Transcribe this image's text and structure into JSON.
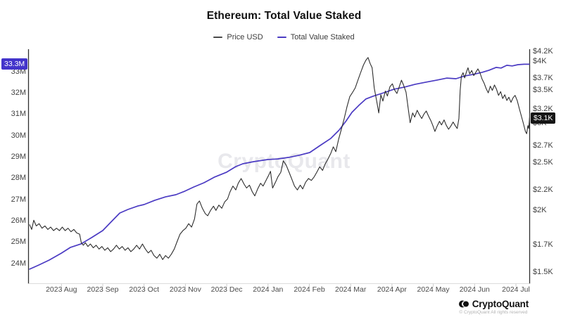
{
  "header": {
    "title": "Ethereum: Total Value Staked"
  },
  "legend": [
    {
      "label": "Price USD",
      "color": "#4a4a4a"
    },
    {
      "label": "Total Value Staked",
      "color": "#4b3bc3"
    }
  ],
  "watermark": "CryptoQuant",
  "footer": {
    "brand": "CryptoQuant",
    "copyright": "© CryptoQuant All rights reserved"
  },
  "badges": {
    "staked": {
      "text": "33.3M",
      "bg": "#4334cb"
    },
    "price": {
      "text": "$3.1K",
      "bg": "#161616"
    }
  },
  "chart_data": {
    "type": "line",
    "title": "Ethereum: Total Value Staked",
    "x_axis": {
      "unit": "months from 2023-08",
      "categories": [
        "2023 Aug",
        "2023 Sep",
        "2023 Oct",
        "2023 Nov",
        "2023 Dec",
        "2024 Jan",
        "2024 Feb",
        "2024 Mar",
        "2024 Apr",
        "2024 May",
        "2024 Jun",
        "2024 Jul"
      ]
    },
    "left_axis": {
      "name": "Total Value Staked",
      "unit": "M",
      "scale": "linear",
      "min": 24,
      "max": 33.5,
      "ticks": [
        33,
        32,
        31,
        30,
        29,
        28,
        27,
        26,
        25,
        24
      ]
    },
    "right_axis": {
      "name": "Price USD",
      "unit": "$K",
      "scale": "log",
      "min": 1.5,
      "max": 4.2,
      "ticks": [
        4.2,
        4,
        3.7,
        3.5,
        3.2,
        3,
        2.7,
        2.5,
        2.2,
        2,
        1.7,
        1.5
      ]
    },
    "grid": false,
    "legend_position": "top",
    "series": [
      {
        "name": "Total Value Staked",
        "axis": "left",
        "color": "#4b3bc3",
        "unit": "M ETH",
        "last_label": "33.3M",
        "points": [
          [
            -0.77,
            23.74
          ],
          [
            -0.55,
            23.93
          ],
          [
            -0.3,
            24.16
          ],
          [
            0,
            24.49
          ],
          [
            0.22,
            24.76
          ],
          [
            0.47,
            24.92
          ],
          [
            0.73,
            25.22
          ],
          [
            1,
            25.55
          ],
          [
            1.2,
            25.95
          ],
          [
            1.41,
            26.37
          ],
          [
            1.61,
            26.54
          ],
          [
            1.85,
            26.7
          ],
          [
            2,
            26.77
          ],
          [
            2.26,
            26.97
          ],
          [
            2.52,
            27.13
          ],
          [
            2.77,
            27.23
          ],
          [
            2.99,
            27.4
          ],
          [
            3.2,
            27.59
          ],
          [
            3.45,
            27.79
          ],
          [
            3.71,
            28.06
          ],
          [
            4,
            28.29
          ],
          [
            4.22,
            28.55
          ],
          [
            4.39,
            28.68
          ],
          [
            4.65,
            28.78
          ],
          [
            4.99,
            28.88
          ],
          [
            5.24,
            28.91
          ],
          [
            5.5,
            28.98
          ],
          [
            5.75,
            29.08
          ],
          [
            6.01,
            29.21
          ],
          [
            6.26,
            29.54
          ],
          [
            6.52,
            29.87
          ],
          [
            6.72,
            30.26
          ],
          [
            6.89,
            30.69
          ],
          [
            7.03,
            31.09
          ],
          [
            7.2,
            31.42
          ],
          [
            7.37,
            31.72
          ],
          [
            7.54,
            31.85
          ],
          [
            7.8,
            32.01
          ],
          [
            8.05,
            32.18
          ],
          [
            8.31,
            32.28
          ],
          [
            8.56,
            32.41
          ],
          [
            8.82,
            32.51
          ],
          [
            9.08,
            32.6
          ],
          [
            9.33,
            32.7
          ],
          [
            9.55,
            32.67
          ],
          [
            9.76,
            32.8
          ],
          [
            9.96,
            32.87
          ],
          [
            10.18,
            32.97
          ],
          [
            10.35,
            33.07
          ],
          [
            10.52,
            33.2
          ],
          [
            10.64,
            33.17
          ],
          [
            10.78,
            33.3
          ],
          [
            10.91,
            33.27
          ],
          [
            11.05,
            33.33
          ],
          [
            11.2,
            33.35
          ],
          [
            11.32,
            33.35
          ]
        ]
      },
      {
        "name": "Price USD",
        "axis": "right",
        "color": "#2d2d2d",
        "unit": "K USD",
        "last_label": "$3.1K",
        "points": [
          [
            -0.77,
            1.87
          ],
          [
            -0.72,
            1.83
          ],
          [
            -0.67,
            1.91
          ],
          [
            -0.61,
            1.86
          ],
          [
            -0.54,
            1.88
          ],
          [
            -0.47,
            1.84
          ],
          [
            -0.4,
            1.86
          ],
          [
            -0.33,
            1.83
          ],
          [
            -0.26,
            1.85
          ],
          [
            -0.19,
            1.82
          ],
          [
            -0.12,
            1.84
          ],
          [
            -0.05,
            1.82
          ],
          [
            0.02,
            1.85
          ],
          [
            0.09,
            1.82
          ],
          [
            0.16,
            1.84
          ],
          [
            0.23,
            1.81
          ],
          [
            0.3,
            1.83
          ],
          [
            0.37,
            1.8
          ],
          [
            0.44,
            1.79
          ],
          [
            0.48,
            1.72
          ],
          [
            0.53,
            1.7
          ],
          [
            0.58,
            1.72
          ],
          [
            0.64,
            1.69
          ],
          [
            0.7,
            1.71
          ],
          [
            0.77,
            1.68
          ],
          [
            0.84,
            1.7
          ],
          [
            0.91,
            1.67
          ],
          [
            0.98,
            1.69
          ],
          [
            1.05,
            1.66
          ],
          [
            1.12,
            1.68
          ],
          [
            1.19,
            1.65
          ],
          [
            1.26,
            1.67
          ],
          [
            1.33,
            1.7
          ],
          [
            1.4,
            1.67
          ],
          [
            1.47,
            1.69
          ],
          [
            1.54,
            1.66
          ],
          [
            1.61,
            1.68
          ],
          [
            1.68,
            1.65
          ],
          [
            1.75,
            1.67
          ],
          [
            1.82,
            1.7
          ],
          [
            1.89,
            1.67
          ],
          [
            1.96,
            1.71
          ],
          [
            2.03,
            1.67
          ],
          [
            2.1,
            1.64
          ],
          [
            2.17,
            1.66
          ],
          [
            2.24,
            1.62
          ],
          [
            2.31,
            1.6
          ],
          [
            2.38,
            1.63
          ],
          [
            2.45,
            1.59
          ],
          [
            2.52,
            1.62
          ],
          [
            2.59,
            1.6
          ],
          [
            2.66,
            1.63
          ],
          [
            2.73,
            1.67
          ],
          [
            2.8,
            1.73
          ],
          [
            2.87,
            1.79
          ],
          [
            2.94,
            1.82
          ],
          [
            3.01,
            1.84
          ],
          [
            3.08,
            1.88
          ],
          [
            3.15,
            1.85
          ],
          [
            3.22,
            1.92
          ],
          [
            3.28,
            2.06
          ],
          [
            3.34,
            2.09
          ],
          [
            3.41,
            2.02
          ],
          [
            3.48,
            1.97
          ],
          [
            3.54,
            1.95
          ],
          [
            3.61,
            2
          ],
          [
            3.68,
            2.04
          ],
          [
            3.74,
            2
          ],
          [
            3.81,
            2.05
          ],
          [
            3.88,
            2.02
          ],
          [
            3.95,
            2.08
          ],
          [
            4.02,
            2.11
          ],
          [
            4.08,
            2.18
          ],
          [
            4.15,
            2.24
          ],
          [
            4.22,
            2.2
          ],
          [
            4.28,
            2.27
          ],
          [
            4.35,
            2.32
          ],
          [
            4.42,
            2.26
          ],
          [
            4.48,
            2.22
          ],
          [
            4.55,
            2.25
          ],
          [
            4.62,
            2.18
          ],
          [
            4.68,
            2.14
          ],
          [
            4.75,
            2.21
          ],
          [
            4.82,
            2.27
          ],
          [
            4.88,
            2.24
          ],
          [
            4.95,
            2.3
          ],
          [
            5.02,
            2.36
          ],
          [
            5.06,
            2.4
          ],
          [
            5.11,
            2.22
          ],
          [
            5.18,
            2.28
          ],
          [
            5.24,
            2.34
          ],
          [
            5.31,
            2.39
          ],
          [
            5.37,
            2.52
          ],
          [
            5.44,
            2.47
          ],
          [
            5.51,
            2.39
          ],
          [
            5.58,
            2.31
          ],
          [
            5.64,
            2.24
          ],
          [
            5.71,
            2.2
          ],
          [
            5.78,
            2.25
          ],
          [
            5.84,
            2.21
          ],
          [
            5.91,
            2.28
          ],
          [
            5.98,
            2.32
          ],
          [
            6.05,
            2.3
          ],
          [
            6.12,
            2.34
          ],
          [
            6.18,
            2.39
          ],
          [
            6.25,
            2.45
          ],
          [
            6.32,
            2.41
          ],
          [
            6.38,
            2.48
          ],
          [
            6.45,
            2.54
          ],
          [
            6.52,
            2.61
          ],
          [
            6.58,
            2.69
          ],
          [
            6.64,
            2.63
          ],
          [
            6.71,
            2.79
          ],
          [
            6.78,
            2.93
          ],
          [
            6.84,
            3.06
          ],
          [
            6.91,
            3.24
          ],
          [
            6.98,
            3.4
          ],
          [
            7.04,
            3.46
          ],
          [
            7.11,
            3.54
          ],
          [
            7.17,
            3.66
          ],
          [
            7.24,
            3.8
          ],
          [
            7.31,
            3.94
          ],
          [
            7.37,
            4.03
          ],
          [
            7.42,
            4.08
          ],
          [
            7.47,
            3.97
          ],
          [
            7.52,
            3.89
          ],
          [
            7.57,
            3.54
          ],
          [
            7.63,
            3.33
          ],
          [
            7.68,
            3.15
          ],
          [
            7.73,
            3.43
          ],
          [
            7.78,
            3.33
          ],
          [
            7.84,
            3.49
          ],
          [
            7.89,
            3.41
          ],
          [
            7.95,
            3.56
          ],
          [
            8.01,
            3.61
          ],
          [
            8.06,
            3.51
          ],
          [
            8.12,
            3.45
          ],
          [
            8.17,
            3.55
          ],
          [
            8.23,
            3.67
          ],
          [
            8.28,
            3.59
          ],
          [
            8.34,
            3.47
          ],
          [
            8.39,
            3.23
          ],
          [
            8.44,
            3.01
          ],
          [
            8.5,
            3.15
          ],
          [
            8.55,
            3.09
          ],
          [
            8.61,
            3.19
          ],
          [
            8.66,
            3.13
          ],
          [
            8.72,
            3.07
          ],
          [
            8.77,
            3.13
          ],
          [
            8.83,
            3.18
          ],
          [
            8.88,
            3.11
          ],
          [
            8.94,
            3.04
          ],
          [
            8.99,
            2.97
          ],
          [
            9.04,
            2.89
          ],
          [
            9.09,
            2.96
          ],
          [
            9.15,
            3.03
          ],
          [
            9.2,
            2.98
          ],
          [
            9.26,
            3.05
          ],
          [
            9.31,
            2.98
          ],
          [
            9.37,
            2.92
          ],
          [
            9.42,
            2.96
          ],
          [
            9.48,
            3.02
          ],
          [
            9.53,
            2.97
          ],
          [
            9.58,
            2.93
          ],
          [
            9.62,
            3.07
          ],
          [
            9.65,
            3.5
          ],
          [
            9.68,
            3.74
          ],
          [
            9.72,
            3.8
          ],
          [
            9.76,
            3.71
          ],
          [
            9.8,
            3.81
          ],
          [
            9.84,
            3.89
          ],
          [
            9.88,
            3.78
          ],
          [
            9.93,
            3.84
          ],
          [
            9.98,
            3.75
          ],
          [
            10.03,
            3.81
          ],
          [
            10.08,
            3.87
          ],
          [
            10.13,
            3.8
          ],
          [
            10.18,
            3.69
          ],
          [
            10.23,
            3.62
          ],
          [
            10.28,
            3.53
          ],
          [
            10.33,
            3.46
          ],
          [
            10.38,
            3.57
          ],
          [
            10.43,
            3.5
          ],
          [
            10.48,
            3.59
          ],
          [
            10.53,
            3.52
          ],
          [
            10.58,
            3.42
          ],
          [
            10.63,
            3.48
          ],
          [
            10.68,
            3.37
          ],
          [
            10.73,
            3.43
          ],
          [
            10.78,
            3.34
          ],
          [
            10.83,
            3.39
          ],
          [
            10.88,
            3.31
          ],
          [
            10.93,
            3.38
          ],
          [
            10.98,
            3.42
          ],
          [
            11.03,
            3.34
          ],
          [
            11.08,
            3.22
          ],
          [
            11.13,
            3.11
          ],
          [
            11.18,
            3
          ],
          [
            11.23,
            2.89
          ],
          [
            11.26,
            2.86
          ],
          [
            11.29,
            2.97
          ],
          [
            11.31,
            2.93
          ],
          [
            11.33,
            3.08
          ]
        ]
      }
    ]
  }
}
